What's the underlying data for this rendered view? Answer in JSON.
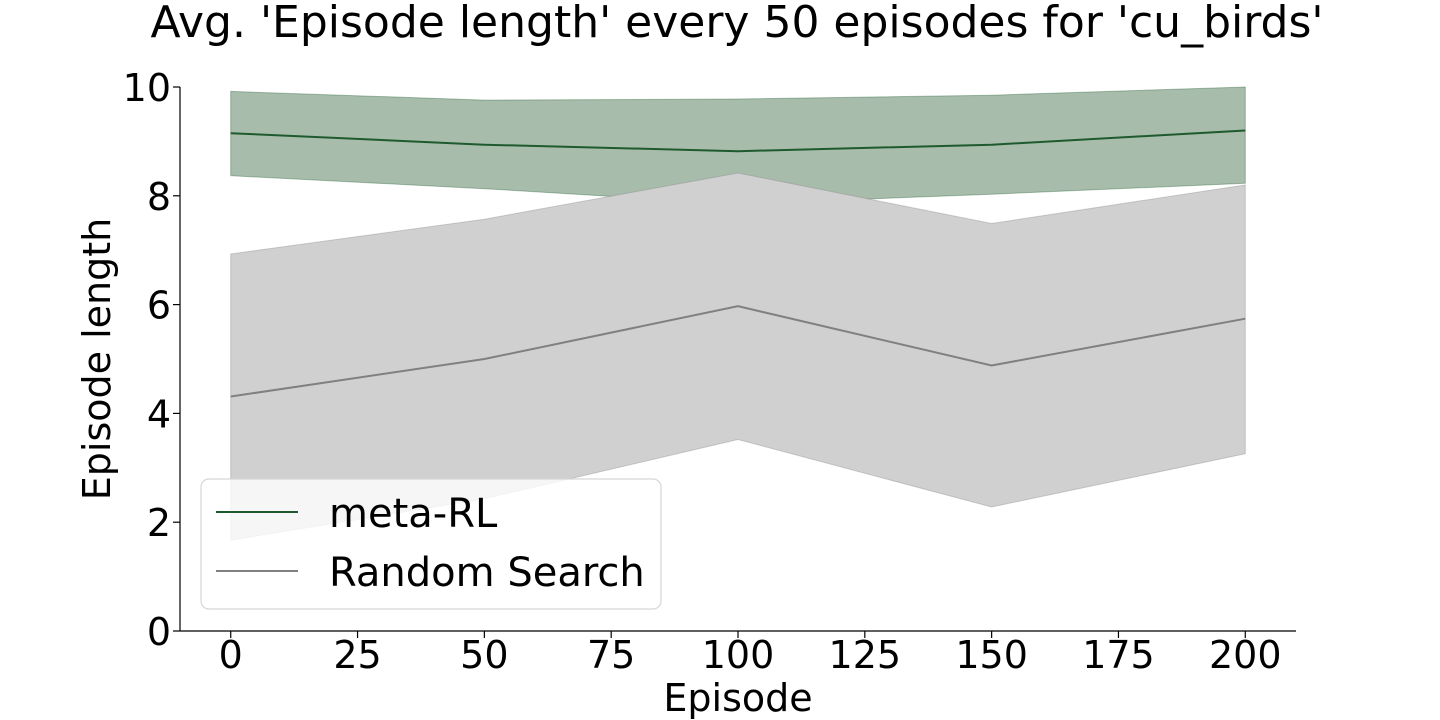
{
  "chart_data": {
    "type": "line",
    "title": "Avg. 'Episode length' every 50 episodes for 'cu_birds'",
    "xlabel": "Episode",
    "ylabel": "Episode length",
    "xlim": [
      -10,
      210
    ],
    "ylim": [
      0,
      10
    ],
    "x": [
      0,
      50,
      100,
      150,
      200
    ],
    "xticks": [
      0,
      25,
      50,
      75,
      100,
      125,
      150,
      175,
      200
    ],
    "yticks": [
      0,
      2,
      4,
      6,
      8,
      10
    ],
    "grid": false,
    "legend": "bottom-left",
    "series": [
      {
        "name": "meta-RL",
        "color": "#1e5a2e",
        "band_color": "#a7bcab",
        "x": [
          0,
          50,
          100,
          150,
          200
        ],
        "values": [
          9.15,
          8.94,
          8.82,
          8.94,
          9.2
        ],
        "upper": [
          9.92,
          9.76,
          9.78,
          9.85,
          10.0
        ],
        "lower": [
          8.37,
          8.13,
          7.85,
          8.03,
          8.23
        ]
      },
      {
        "name": "Random Search",
        "color": "#808080",
        "band_color": "#d0d0d0",
        "x": [
          0,
          50,
          100,
          150,
          200
        ],
        "values": [
          4.31,
          5.0,
          5.97,
          4.88,
          5.74
        ],
        "upper": [
          6.93,
          7.57,
          8.42,
          7.49,
          8.2
        ],
        "lower": [
          1.67,
          2.43,
          3.52,
          2.28,
          3.26
        ]
      }
    ]
  }
}
